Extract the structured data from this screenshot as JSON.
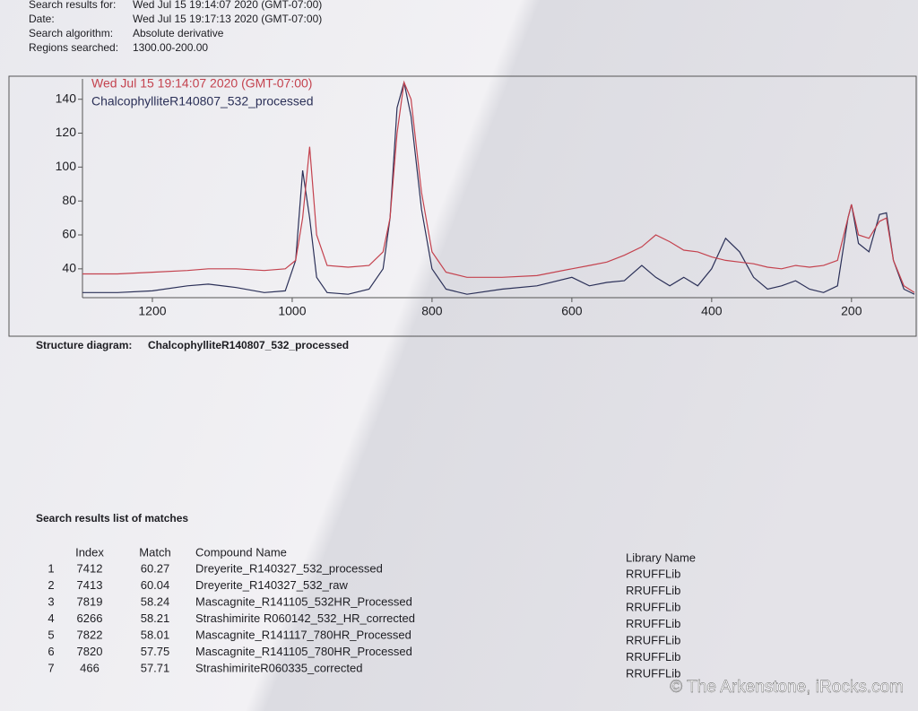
{
  "header": {
    "lines": [
      {
        "label": "Search results for:",
        "value": "Wed Jul 15 19:14:07 2020 (GMT-07:00)"
      },
      {
        "label": "Date:",
        "value": "Wed Jul 15 19:17:13 2020 (GMT-07:00)"
      },
      {
        "label": "Search algorithm:",
        "value": "Absolute derivative"
      },
      {
        "label": "Regions searched:",
        "value": "1300.00-200.00"
      }
    ]
  },
  "chart_data": {
    "type": "line",
    "x": [
      1300,
      1250,
      1200,
      1150,
      1120,
      1080,
      1040,
      1010,
      995,
      985,
      975,
      965,
      950,
      920,
      890,
      870,
      860,
      850,
      840,
      830,
      815,
      800,
      780,
      750,
      700,
      650,
      600,
      575,
      550,
      525,
      500,
      480,
      460,
      440,
      420,
      400,
      380,
      360,
      340,
      320,
      300,
      280,
      260,
      240,
      220,
      205,
      200,
      190,
      175,
      160,
      150,
      140,
      125,
      110
    ],
    "series": [
      {
        "name": "ChalcophylliteR140807_532_processed",
        "color": "#2b3058",
        "values": [
          26,
          26,
          27,
          30,
          31,
          29,
          26,
          27,
          45,
          98,
          70,
          35,
          26,
          25,
          28,
          40,
          70,
          135,
          150,
          130,
          75,
          40,
          28,
          25,
          28,
          30,
          35,
          30,
          32,
          33,
          42,
          35,
          30,
          35,
          30,
          40,
          58,
          50,
          35,
          28,
          30,
          33,
          28,
          26,
          30,
          70,
          78,
          55,
          50,
          72,
          73,
          45,
          28,
          25
        ]
      },
      {
        "name": "Wed Jul 15 19:14:07 2020 (GMT-07:00)",
        "color": "#c4424e",
        "values": [
          37,
          37,
          38,
          39,
          40,
          40,
          39,
          40,
          45,
          70,
          112,
          60,
          42,
          41,
          42,
          50,
          70,
          120,
          150,
          140,
          85,
          50,
          38,
          35,
          35,
          36,
          40,
          42,
          44,
          48,
          53,
          60,
          56,
          51,
          50,
          47,
          45,
          44,
          43,
          41,
          40,
          42,
          41,
          42,
          45,
          70,
          78,
          60,
          58,
          68,
          70,
          45,
          30,
          26
        ]
      }
    ],
    "xlim": [
      1300,
      110
    ],
    "ylim": [
      23,
      152
    ],
    "xticks": [
      1200,
      1000,
      800,
      600,
      400,
      200
    ],
    "yticks": [
      40,
      60,
      80,
      100,
      120,
      140
    ]
  },
  "structure": {
    "label": "Structure diagram:",
    "value": "ChalcophylliteR140807_532_processed"
  },
  "results": {
    "title": "Search results list of matches",
    "columns": [
      "Index",
      "Match",
      "Compound Name",
      "Library Name"
    ],
    "rows": [
      [
        "1",
        "7412",
        "60.27",
        "Dreyerite_R140327_532_processed",
        "RRUFFLib"
      ],
      [
        "2",
        "7413",
        "60.04",
        "Dreyerite_R140327_532_raw",
        "RRUFFLib"
      ],
      [
        "3",
        "7819",
        "58.24",
        "Mascagnite_R141105_532HR_Processed",
        "RRUFFLib"
      ],
      [
        "4",
        "6266",
        "58.21",
        "Strashimirite R060142_532_HR_corrected",
        "RRUFFLib"
      ],
      [
        "5",
        "7822",
        "58.01",
        "Mascagnite_R141117_780HR_Processed",
        "RRUFFLib"
      ],
      [
        "6",
        "7820",
        "57.75",
        "Mascagnite_R141105_780HR_Processed",
        "RRUFFLib"
      ],
      [
        "7",
        "466",
        "57.71",
        "StrashimiriteR060335_corrected",
        "RRUFFLib"
      ]
    ]
  },
  "watermark": "© The Arkenstone, iRocks.com"
}
